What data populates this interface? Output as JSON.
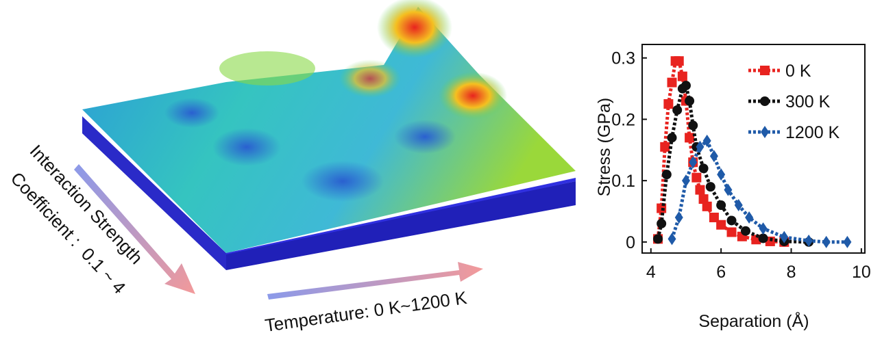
{
  "chart_data": {
    "type": "scatter-line",
    "annotations": [
      "Interaction Strength",
      "Coefficient :  0.1 ~ 4",
      "Temperature: 0 K~1200 K"
    ],
    "xlabel": "Separation (Å)",
    "ylabel": "Stress (GPa)",
    "xlim": [
      3.75,
      10.1
    ],
    "ylim": [
      -0.018,
      0.322
    ],
    "xticks": [
      4,
      6,
      8,
      10
    ],
    "yticks": [
      0,
      0.1,
      0.2,
      0.3
    ],
    "legend": "upper right",
    "series": [
      {
        "name": "0 K",
        "color": "#e8231f",
        "marker": "square",
        "x": [
          4.2,
          4.3,
          4.4,
          4.5,
          4.6,
          4.7,
          4.8,
          4.9,
          5.0,
          5.1,
          5.2,
          5.3,
          5.4,
          5.5,
          5.6,
          5.8,
          6.0,
          6.3,
          6.6,
          7.0,
          7.4,
          7.8
        ],
        "values": [
          0.005,
          0.055,
          0.155,
          0.225,
          0.26,
          0.295,
          0.295,
          0.27,
          0.23,
          0.17,
          0.13,
          0.105,
          0.085,
          0.07,
          0.058,
          0.04,
          0.028,
          0.016,
          0.009,
          0.004,
          0.001,
          0
        ]
      },
      {
        "name": "300 K",
        "color": "#111111",
        "marker": "circle",
        "x": [
          4.2,
          4.3,
          4.45,
          4.6,
          4.75,
          4.9,
          5.0,
          5.1,
          5.2,
          5.3,
          5.5,
          5.7,
          6.0,
          6.3,
          6.7,
          7.2,
          7.8,
          8.5
        ],
        "values": [
          0.005,
          0.03,
          0.11,
          0.17,
          0.215,
          0.25,
          0.255,
          0.23,
          0.19,
          0.155,
          0.12,
          0.09,
          0.06,
          0.035,
          0.018,
          0.006,
          0.001,
          0
        ]
      },
      {
        "name": "1200 K",
        "color": "#1f5aa8",
        "marker": "diamond",
        "x": [
          4.6,
          4.8,
          5.0,
          5.2,
          5.4,
          5.6,
          5.8,
          6.0,
          6.2,
          6.5,
          6.8,
          7.2,
          7.8,
          8.5,
          9.0,
          9.6
        ],
        "values": [
          0.005,
          0.04,
          0.1,
          0.13,
          0.155,
          0.165,
          0.14,
          0.11,
          0.085,
          0.06,
          0.04,
          0.022,
          0.008,
          0.002,
          0,
          0
        ]
      }
    ]
  }
}
